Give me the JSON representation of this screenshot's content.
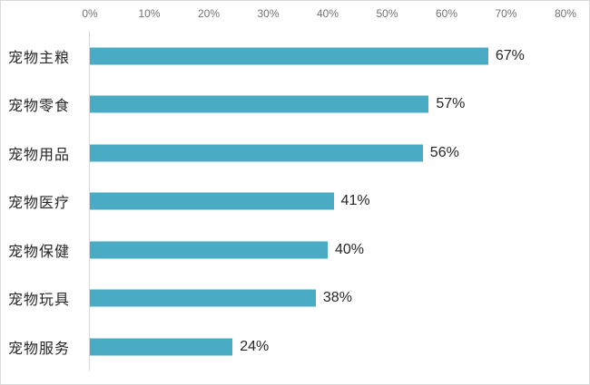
{
  "chart_data": {
    "type": "bar",
    "orientation": "horizontal",
    "title": "",
    "categories": [
      "宠物主粮",
      "宠物零食",
      "宠物用品",
      "宠物医疗",
      "宠物保健",
      "宠物玩具",
      "宠物服务"
    ],
    "values": [
      67,
      57,
      56,
      41,
      40,
      38,
      24
    ],
    "value_labels": [
      "67%",
      "57%",
      "56%",
      "41%",
      "40%",
      "38%",
      "24%"
    ],
    "x_axis": {
      "position": "top",
      "min": 0,
      "max": 80,
      "tick_labels": [
        "0%",
        "10%",
        "20%",
        "30%",
        "40%",
        "50%",
        "60%",
        "70%",
        "80%"
      ]
    },
    "grid": false,
    "legend": false,
    "colors": {
      "bar": "#4aabc5",
      "axis_line": "#d9d9d9",
      "tick_text": "#737373",
      "label_text": "#262626",
      "frame_border": "#d9d9d9",
      "background": "#ffffff"
    }
  }
}
